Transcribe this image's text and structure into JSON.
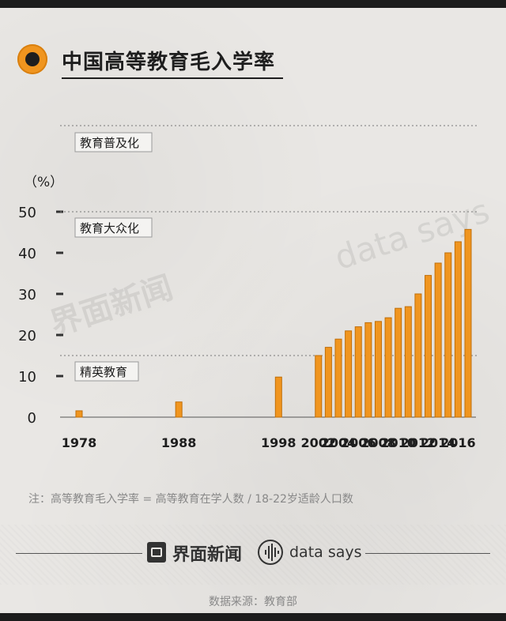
{
  "title": "中国高等教育毛入学率",
  "watermarks": {
    "jiemian": "界面新闻",
    "datasays": "data says"
  },
  "note": "注：高等教育毛入学率 = 高等教育在学人数 / 18-22岁适龄人口数",
  "footer": {
    "jiemian_label": "界面新闻",
    "datasays_label": "data says"
  },
  "source": "数据来源：教育部",
  "colors": {
    "bar": "#f0951f",
    "bar_edge": "#c06f0a",
    "text": "#1e1e1e",
    "accent": "#f0951f"
  },
  "chart_data": {
    "type": "bar",
    "ylabel": "（%）",
    "ylim": [
      0,
      50
    ],
    "yticks": [
      0,
      10,
      20,
      30,
      40,
      50
    ],
    "x": [
      1978,
      1988,
      1998,
      2002,
      2003,
      2004,
      2005,
      2006,
      2007,
      2008,
      2009,
      2010,
      2011,
      2012,
      2013,
      2014,
      2015,
      2016,
      2017
    ],
    "values": [
      1.55,
      3.7,
      9.76,
      15,
      17,
      19,
      21,
      22,
      23,
      23.3,
      24.2,
      26.5,
      26.9,
      30,
      34.5,
      37.5,
      40,
      42.7,
      45.7
    ],
    "xticklabels": [
      {
        "x": 1978,
        "label": "1978"
      },
      {
        "x": 1988,
        "label": "1988"
      },
      {
        "x": 1998,
        "label": "1998"
      },
      {
        "x": 2002,
        "label": "2002"
      },
      {
        "x": 2004,
        "label": "2004"
      },
      {
        "x": 2006,
        "label": "2006"
      },
      {
        "x": 2008,
        "label": "2008"
      },
      {
        "x": 2010,
        "label": "2010"
      },
      {
        "x": 2012,
        "label": "2012"
      },
      {
        "x": 2014,
        "label": "2014"
      },
      {
        "x": 2016,
        "label": "2016"
      }
    ],
    "thresholds": [
      {
        "value": 15,
        "label": "精英教育"
      },
      {
        "value": 50,
        "label": "教育大众化"
      },
      {
        "value": 70,
        "label": "教育普及化"
      }
    ]
  }
}
